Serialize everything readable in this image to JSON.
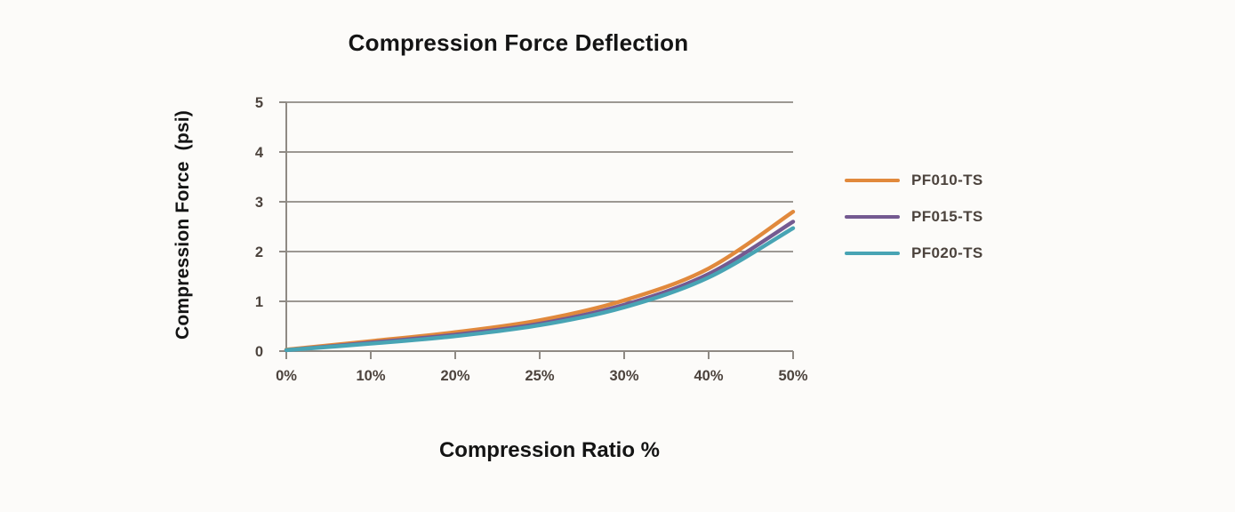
{
  "chart_data": {
    "type": "line",
    "title": "Compression Force Deflection",
    "xlabel": "Compression Ratio %",
    "ylabel": "Compression Force  (psi)",
    "categories": [
      "0%",
      "10%",
      "20%",
      "25%",
      "30%",
      "40%",
      "50%"
    ],
    "ylim": [
      0,
      5
    ],
    "yticks": [
      0,
      1,
      2,
      3,
      4,
      5
    ],
    "grid": "horizontal",
    "legend_position": "right",
    "series": [
      {
        "name": "PF010-TS",
        "color": "#E1893C",
        "values": [
          0.03,
          0.2,
          0.38,
          0.62,
          1.02,
          1.66,
          2.8
        ]
      },
      {
        "name": "PF015-TS",
        "color": "#745A91",
        "values": [
          0.02,
          0.17,
          0.33,
          0.55,
          0.93,
          1.55,
          2.6
        ]
      },
      {
        "name": "PF020-TS",
        "color": "#48A4B4",
        "values": [
          0.02,
          0.15,
          0.3,
          0.52,
          0.88,
          1.48,
          2.47
        ]
      }
    ],
    "colors": {
      "grid": "#8F8A84",
      "axis": "#8F8A84",
      "tick_text": "#4C433D",
      "title_text": "#141414",
      "background": "#FCFBF9"
    }
  }
}
